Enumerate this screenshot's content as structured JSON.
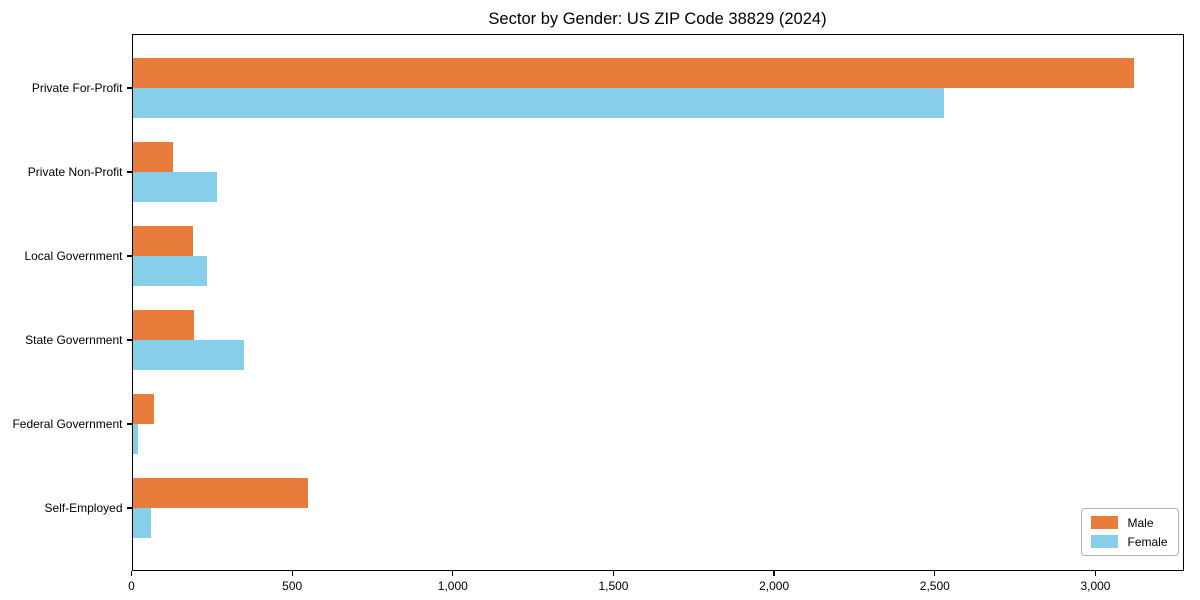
{
  "chart_data": {
    "type": "bar",
    "orientation": "horizontal",
    "title": "Sector by Gender: US ZIP Code 38829 (2024)",
    "categories": [
      "Private For-Profit",
      "Private Non-Profit",
      "Local Government",
      "State Government",
      "Federal Government",
      "Self-Employed"
    ],
    "series": [
      {
        "name": "Male",
        "color": "#E87D3B",
        "values": [
          3120,
          130,
          190,
          195,
          70,
          550
        ]
      },
      {
        "name": "Female",
        "color": "#87CEEB",
        "values": [
          2530,
          265,
          235,
          350,
          20,
          60
        ]
      }
    ],
    "xlabel": "",
    "ylabel": "",
    "xlim": [
      0,
      3274
    ],
    "xticks": {
      "values": [
        0,
        500,
        1000,
        1500,
        2000,
        2500,
        3000
      ],
      "labels": [
        "0",
        "500",
        "1,000",
        "1,500",
        "2,000",
        "2,500",
        "3,000"
      ]
    },
    "grid": false,
    "legend_position": "lower right",
    "axis_color": "#000000",
    "background_color": "#ffffff"
  }
}
